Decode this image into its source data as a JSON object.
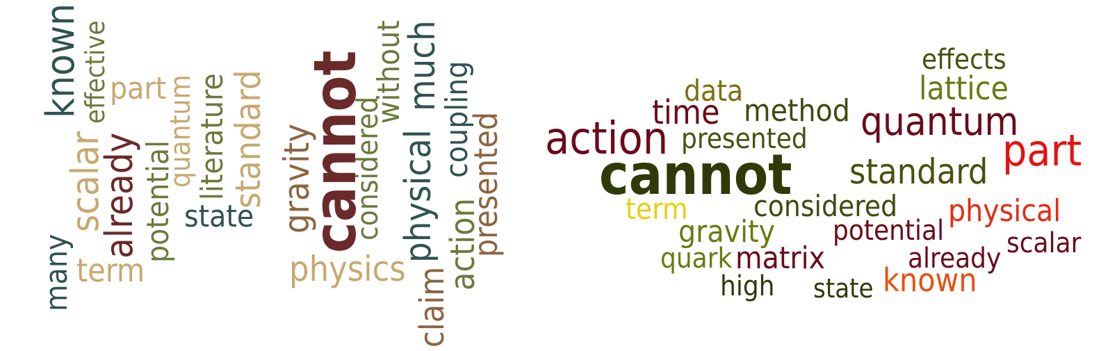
{
  "cloud_left": {
    "words": [
      {
        "text": "many",
        "color": "#2F5350"
      },
      {
        "text": "known",
        "color": "#2F5350"
      },
      {
        "text": "scalar",
        "color": "#C8A870"
      },
      {
        "text": "effective",
        "color": "#6B7A3C"
      },
      {
        "text": "term",
        "color": "#C8A870"
      },
      {
        "text": "already",
        "color": "#6B2A2A"
      },
      {
        "text": "part",
        "color": "#C8A870"
      },
      {
        "text": "potential",
        "color": "#6B7A3C"
      },
      {
        "text": "quantum",
        "color": "#C8A870"
      },
      {
        "text": "literature",
        "color": "#6B7A3C"
      },
      {
        "text": "state",
        "color": "#2F5350"
      },
      {
        "text": "standard",
        "color": "#C8A870"
      },
      {
        "text": "gravity",
        "color": "#8C6440"
      },
      {
        "text": "cannot",
        "color": "#6B2A2A"
      },
      {
        "text": "physics",
        "color": "#C8A870"
      },
      {
        "text": "considered",
        "color": "#6B7A3C"
      },
      {
        "text": "without",
        "color": "#6B7A3C"
      },
      {
        "text": "physical",
        "color": "#2F5350"
      },
      {
        "text": "much",
        "color": "#2F5350"
      },
      {
        "text": "claim",
        "color": "#8C6440"
      },
      {
        "text": "action",
        "color": "#6B7A3C"
      },
      {
        "text": "coupling",
        "color": "#2F5350"
      },
      {
        "text": "presented",
        "color": "#8C6440"
      }
    ]
  },
  "cloud_right": {
    "words": [
      {
        "text": "effects",
        "color": "#4A5010"
      },
      {
        "text": "lattice",
        "color": "#6B7A10"
      },
      {
        "text": "data",
        "color": "#7A7010"
      },
      {
        "text": "time",
        "color": "#6B0A1A"
      },
      {
        "text": "method",
        "color": "#3F4A10"
      },
      {
        "text": "quantum",
        "color": "#6B0A1A"
      },
      {
        "text": "action",
        "color": "#6B0A1A"
      },
      {
        "text": "presented",
        "color": "#4A5010"
      },
      {
        "text": "part",
        "color": "#E81010"
      },
      {
        "text": "cannot",
        "color": "#2F3A08"
      },
      {
        "text": "standard",
        "color": "#4A5010"
      },
      {
        "text": "term",
        "color": "#E8D010"
      },
      {
        "text": "considered",
        "color": "#3F4A10"
      },
      {
        "text": "physical",
        "color": "#E82A10"
      },
      {
        "text": "gravity",
        "color": "#6B7A10"
      },
      {
        "text": "potential",
        "color": "#6B0A1A"
      },
      {
        "text": "scalar",
        "color": "#6B0A1A"
      },
      {
        "text": "quark",
        "color": "#6B7A10"
      },
      {
        "text": "matrix",
        "color": "#6B0A1A"
      },
      {
        "text": "already",
        "color": "#6B0A1A"
      },
      {
        "text": "high",
        "color": "#2F3A08"
      },
      {
        "text": "state",
        "color": "#2F3A08"
      },
      {
        "text": "known",
        "color": "#E85010"
      }
    ]
  }
}
